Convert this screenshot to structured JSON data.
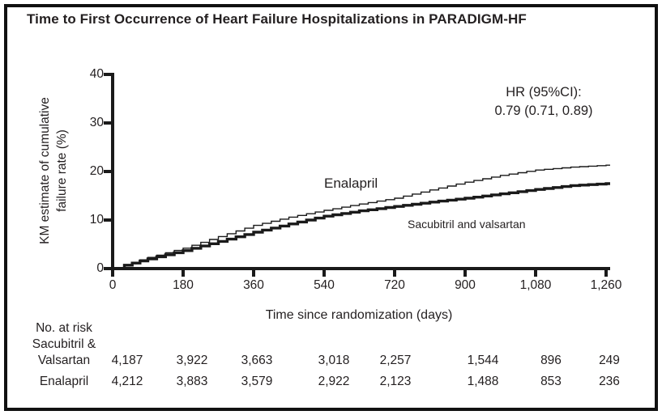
{
  "figure": {
    "title": "Time to First Occurrence of Heart Failure Hospitalizations in PARADIGM-HF"
  },
  "chart_data": {
    "type": "line",
    "subtype": "kaplan-meier-step",
    "title": "Time to First Occurrence of Heart Failure Hospitalizations in PARADIGM-HF",
    "xlabel": "Time since randomization (days)",
    "ylabel": "KM estimate of cumulative failure rate (%)",
    "ylabel_lines": [
      "KM estimate of cumulative",
      "failure rate (%)"
    ],
    "xlim": [
      0,
      1260
    ],
    "ylim": [
      0,
      40
    ],
    "xticks": [
      0,
      180,
      360,
      540,
      720,
      900,
      1080,
      1260
    ],
    "xtick_labels": [
      "0",
      "180",
      "360",
      "540",
      "720",
      "900",
      "1,080",
      "1,260"
    ],
    "yticks": [
      40,
      30,
      20,
      10,
      0
    ],
    "ytick_labels": [
      "40",
      "30",
      "20",
      "10",
      "0"
    ],
    "grid": false,
    "legend_position": "in-plot-labels",
    "annotation": {
      "line1": "HR (95%CI):",
      "line2": "0.79 (0.71, 0.89)"
    },
    "colors": {
      "line": "#1a1a1a",
      "background": "#ffffff"
    },
    "series": [
      {
        "name": "Enalapril",
        "label": "Enalapril",
        "line_weight": "thin",
        "x": [
          0,
          30,
          90,
          180,
          270,
          360,
          450,
          540,
          630,
          720,
          810,
          900,
          990,
          1080,
          1170,
          1260
        ],
        "y": [
          0,
          0.8,
          2.3,
          4.2,
          6.6,
          8.9,
          10.6,
          12.0,
          13.3,
          14.5,
          16.2,
          17.8,
          19.2,
          20.3,
          20.9,
          21.3
        ]
      },
      {
        "name": "Sacubitril and valsartan",
        "label": "Sacubitril and valsartan",
        "line_weight": "thick",
        "x": [
          0,
          30,
          90,
          180,
          270,
          360,
          450,
          540,
          630,
          720,
          810,
          900,
          990,
          1080,
          1170,
          1260
        ],
        "y": [
          0,
          0.7,
          2.0,
          3.7,
          5.6,
          7.5,
          9.2,
          10.8,
          11.9,
          12.8,
          13.7,
          14.5,
          15.4,
          16.3,
          17.1,
          17.5
        ]
      }
    ]
  },
  "risk_table": {
    "heading": "No. at risk",
    "rows": [
      {
        "label_lines": [
          "Sacubitril &",
          "Valsartan"
        ],
        "values": [
          "4,187",
          "3,922",
          "3,663",
          "3,018",
          "2,257",
          "1,544",
          "896",
          "249"
        ]
      },
      {
        "label_lines": [
          "Enalapril"
        ],
        "values": [
          "4,212",
          "3,883",
          "3,579",
          "2,922",
          "2,123",
          "1,488",
          "853",
          "236"
        ]
      }
    ]
  }
}
